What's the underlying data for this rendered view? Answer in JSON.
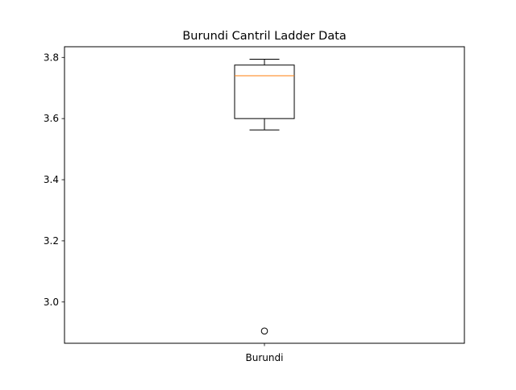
{
  "chart_data": {
    "type": "box",
    "title": "Burundi Cantril Ladder Data",
    "xlabel": "",
    "ylabel": "",
    "categories": [
      "Burundi"
    ],
    "boxes": [
      {
        "name": "Burundi",
        "whisker_low": 3.563,
        "q1": 3.6,
        "median": 3.74,
        "q3": 3.775,
        "whisker_high": 3.794,
        "outliers": [
          2.905
        ]
      }
    ],
    "ylim": [
      2.865,
      3.835
    ],
    "yticks": [
      3.0,
      3.2,
      3.4,
      3.6,
      3.8
    ],
    "ytick_labels": [
      "3.0",
      "3.2",
      "3.4",
      "3.6",
      "3.8"
    ],
    "grid": false,
    "colors": {
      "box": "#000000",
      "median": "#ff7f0e",
      "whisker": "#000000",
      "outlier_edge": "#000000"
    }
  }
}
